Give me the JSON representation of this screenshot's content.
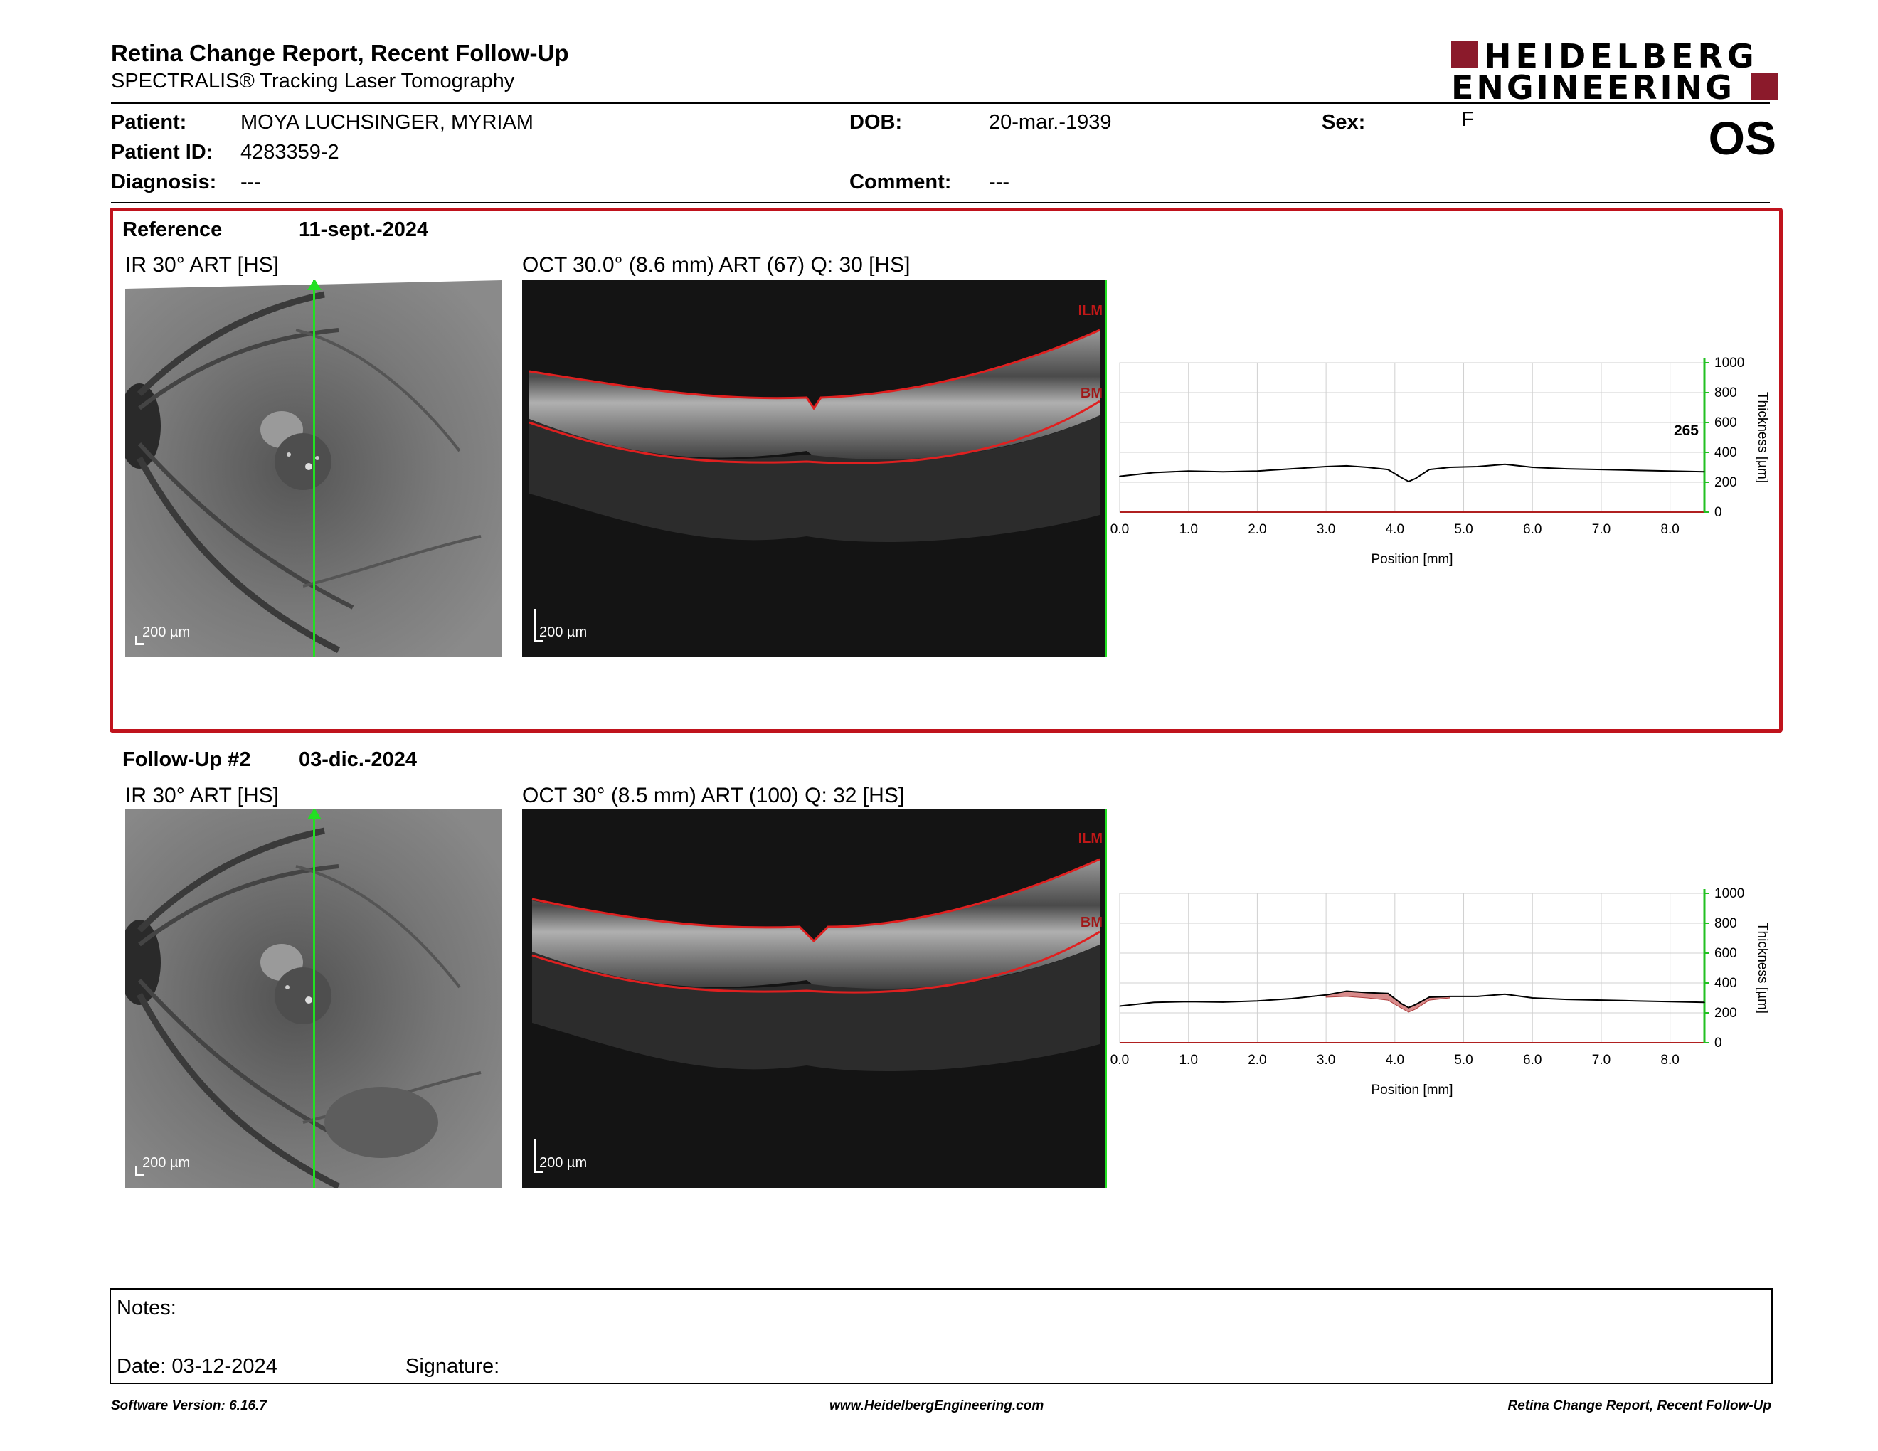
{
  "header": {
    "title": "Retina Change Report, Recent Follow-Up",
    "subtitle": "SPECTRALIS® Tracking Laser Tomography",
    "logo_line1": "HEIDELBERG",
    "logo_line2": "ENGINEERING",
    "eye": "OS",
    "brand_color": "#8b1a2b"
  },
  "patient": {
    "patient_label": "Patient:",
    "patient_value": "MOYA LUCHSINGER, MYRIAM",
    "id_label": "Patient ID:",
    "id_value": "4283359-2",
    "diagnosis_label": "Diagnosis:",
    "diagnosis_value": "---",
    "dob_label": "DOB:",
    "dob_value": "20-mar.-1939",
    "comment_label": "Comment:",
    "comment_value": "---",
    "sex_label": "Sex:",
    "sex_value": "F"
  },
  "reference": {
    "name": "Reference",
    "date": "11-sept.-2024",
    "ir_label": "IR 30° ART [HS]",
    "oct_label": "OCT 30.0° (8.6 mm) ART (67) Q: 30 [HS]",
    "scale_ir": "200 µm",
    "scale_oct": "200 µm",
    "layer_top": "ILM",
    "layer_bottom": "BM",
    "highlight_value": "265"
  },
  "followup": {
    "name": "Follow-Up #2",
    "date": "03-dic.-2024",
    "ir_label": "IR 30° ART [HS]",
    "oct_label": "OCT 30° (8.5 mm) ART (100) Q: 32 [HS]",
    "scale_ir": "200 µm",
    "scale_oct": "200 µm",
    "layer_top": "ILM",
    "layer_bottom": "BM"
  },
  "chart_data": [
    {
      "type": "line",
      "xlabel": "Position [mm]",
      "ylabel": "Thickness [µm]",
      "xlim": [
        0,
        8.5
      ],
      "ylim": [
        0,
        1000
      ],
      "xticks": [
        "0.0",
        "1.0",
        "2.0",
        "3.0",
        "4.0",
        "5.0",
        "6.0",
        "7.0",
        "8.0"
      ],
      "yticks": [
        "0",
        "200",
        "400",
        "600",
        "800",
        "1000"
      ],
      "grid": true,
      "annotation": "265",
      "series": [
        {
          "x": [
            0.0,
            0.5,
            1.0,
            1.5,
            2.0,
            2.5,
            3.0,
            3.3,
            3.6,
            3.9,
            4.1,
            4.2,
            4.3,
            4.5,
            4.8,
            5.2,
            5.6,
            6.0,
            6.5,
            7.0,
            7.5,
            8.0,
            8.5
          ],
          "values": [
            240,
            265,
            275,
            270,
            275,
            290,
            305,
            310,
            300,
            285,
            230,
            205,
            225,
            285,
            300,
            305,
            320,
            300,
            290,
            285,
            280,
            275,
            270
          ]
        }
      ]
    },
    {
      "type": "line",
      "xlabel": "Position [mm]",
      "ylabel": "Thickness [µm]",
      "xlim": [
        0,
        8.5
      ],
      "ylim": [
        0,
        1000
      ],
      "xticks": [
        "0.0",
        "1.0",
        "2.0",
        "3.0",
        "4.0",
        "5.0",
        "6.0",
        "7.0",
        "8.0"
      ],
      "yticks": [
        "0",
        "200",
        "400",
        "600",
        "800",
        "1000"
      ],
      "grid": true,
      "series": [
        {
          "x": [
            0.0,
            0.5,
            1.0,
            1.5,
            2.0,
            2.5,
            3.0,
            3.3,
            3.6,
            3.9,
            4.1,
            4.2,
            4.3,
            4.5,
            4.8,
            5.2,
            5.6,
            6.0,
            6.5,
            7.0,
            7.5,
            8.0,
            8.5
          ],
          "values": [
            245,
            270,
            275,
            272,
            280,
            295,
            320,
            345,
            335,
            330,
            260,
            235,
            255,
            305,
            310,
            310,
            325,
            300,
            290,
            285,
            280,
            275,
            270
          ]
        },
        {
          "x": [
            3.0,
            3.3,
            3.6,
            3.9,
            4.1,
            4.2,
            4.3,
            4.5,
            4.8
          ],
          "values": [
            305,
            310,
            300,
            285,
            230,
            205,
            225,
            285,
            300
          ]
        }
      ],
      "difference_fill_color": "#d88a8a"
    }
  ],
  "notes": {
    "notes_label": "Notes:",
    "date_label": "Date: 03-12-2024",
    "signature_label": "Signature:"
  },
  "footer": {
    "left": "Software Version: 6.16.7",
    "center": "www.HeidelbergEngineering.com",
    "right": "Retina Change Report, Recent Follow-Up"
  }
}
